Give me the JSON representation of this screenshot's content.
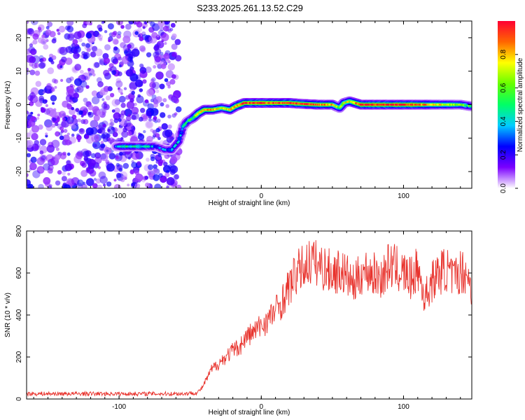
{
  "title": "S233.2025.261.13.52.C29",
  "chart_data": [
    {
      "type": "heatmap",
      "title": "S233.2025.261.13.52.C29",
      "xlabel": "Height of straight line (km)",
      "ylabel": "Frequency (Hz)",
      "xlim": [
        -165,
        148
      ],
      "ylim": [
        -25,
        25
      ],
      "x_ticks": [
        -100,
        0,
        100
      ],
      "y_ticks": [
        -20,
        -10,
        0,
        10,
        20
      ],
      "colorbar": {
        "label": "Normalized spectral amplitude",
        "range": [
          0,
          1
        ],
        "ticks": [
          "0.0",
          "0.2",
          "0.4",
          "0.6",
          "0.8"
        ],
        "colors": [
          "#ffffff",
          "#7b00ff",
          "#0000ff",
          "#00ccff",
          "#00ff66",
          "#66ff00",
          "#ffff00",
          "#ff6600",
          "#ff0033"
        ]
      },
      "ridge": {
        "x": [
          -102,
          -97,
          -92,
          -88,
          -80,
          -74,
          -68,
          -63,
          -58,
          -55,
          -52,
          -48,
          -44,
          -40,
          -34,
          -28,
          -22,
          -18,
          -12,
          -6,
          0,
          10,
          20,
          30,
          40,
          50,
          55,
          58,
          62,
          70,
          80,
          90,
          100,
          110,
          120,
          130,
          140,
          148
        ],
        "freq": [
          -12.5,
          -12.5,
          -12.5,
          -12.5,
          -12.5,
          -12.5,
          -13.5,
          -13.5,
          -11,
          -6.5,
          -5,
          -4,
          -2.5,
          -1.5,
          -1.5,
          -1,
          -1.5,
          -0.5,
          0.5,
          0.5,
          0.5,
          0.5,
          0.5,
          0.2,
          0,
          0,
          -1,
          0.5,
          1.0,
          0,
          0,
          0,
          0,
          0,
          0,
          0,
          0,
          -0.5
        ],
        "amplitude": [
          0.3,
          0.45,
          0.45,
          0.45,
          0.45,
          0.3,
          0.3,
          0.35,
          0.35,
          0.4,
          0.45,
          0.55,
          0.75,
          0.8,
          0.8,
          0.7,
          0.75,
          0.85,
          0.9,
          0.95,
          0.95,
          0.9,
          0.95,
          0.9,
          0.9,
          0.8,
          0.6,
          0.7,
          0.7,
          0.95,
          0.95,
          0.95,
          0.95,
          0.9,
          0.8,
          0.7,
          0.6,
          0.5
        ]
      },
      "noise_region": {
        "x": [
          -165,
          -58
        ],
        "amplitude": [
          0.05,
          0.25
        ]
      }
    },
    {
      "type": "line",
      "xlabel": "Height of straight line (km)",
      "ylabel": "SNR (10 * v/v)",
      "xlim": [
        -165,
        148
      ],
      "ylim": [
        0,
        800
      ],
      "x_ticks": [
        -100,
        0,
        100
      ],
      "y_ticks": [
        0,
        200,
        400,
        600,
        800
      ],
      "series": [
        {
          "name": "SNR",
          "color": "#e8332d",
          "x": [
            -165,
            -150,
            -130,
            -110,
            -90,
            -70,
            -55,
            -45,
            -42,
            -38,
            -35,
            -30,
            -25,
            -20,
            -15,
            -10,
            -5,
            0,
            5,
            10,
            15,
            20,
            25,
            30,
            35,
            40,
            45,
            50,
            55,
            60,
            65,
            70,
            75,
            80,
            85,
            90,
            95,
            100,
            105,
            110,
            115,
            120,
            125,
            130,
            135,
            140,
            145,
            148
          ],
          "y": [
            25,
            25,
            25,
            25,
            25,
            25,
            25,
            30,
            50,
            100,
            140,
            170,
            200,
            230,
            250,
            300,
            320,
            350,
            380,
            420,
            470,
            540,
            600,
            630,
            660,
            640,
            620,
            600,
            610,
            590,
            540,
            600,
            610,
            590,
            580,
            640,
            620,
            600,
            570,
            620,
            480,
            560,
            600,
            620,
            570,
            610,
            600,
            500
          ]
        }
      ]
    }
  ]
}
